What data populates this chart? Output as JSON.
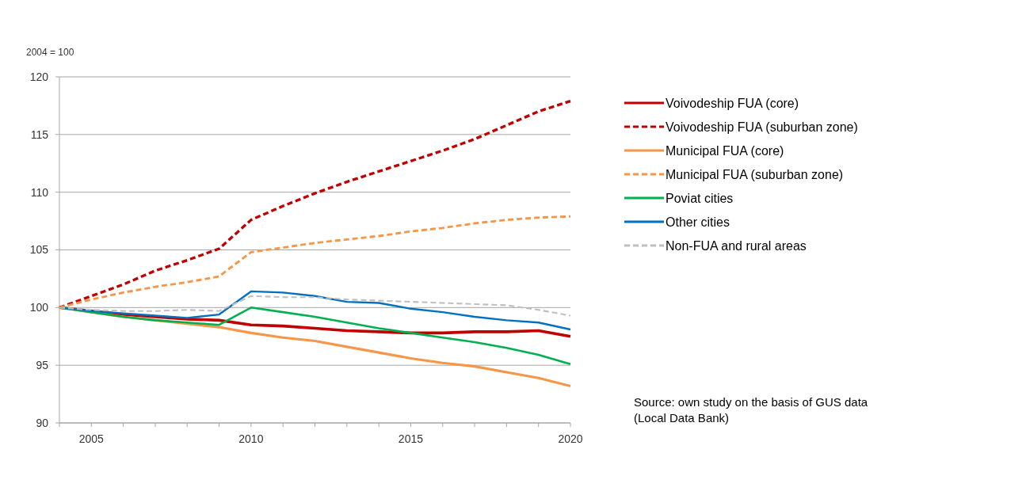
{
  "chart_data": {
    "type": "line",
    "ylabel": "2004 = 100",
    "x": [
      2004,
      2005,
      2006,
      2007,
      2008,
      2009,
      2010,
      2011,
      2012,
      2013,
      2014,
      2015,
      2016,
      2017,
      2018,
      2019,
      2020
    ],
    "series": [
      {
        "name": "Voivodeship FUA (core)",
        "color": "#c00000",
        "line_style": "solid",
        "values": [
          100,
          99.7,
          99.4,
          99.2,
          99.0,
          98.9,
          98.5,
          98.4,
          98.2,
          98.0,
          97.9,
          97.8,
          97.8,
          97.9,
          97.9,
          98.0,
          97.5
        ]
      },
      {
        "name": "Voivodeship FUA (suburban zone)",
        "color": "#c00000",
        "line_style": "dashed",
        "values": [
          100,
          101.0,
          102.0,
          103.2,
          104.1,
          105.1,
          107.6,
          108.8,
          109.9,
          110.9,
          111.8,
          112.7,
          113.6,
          114.6,
          115.8,
          117.0,
          117.9
        ]
      },
      {
        "name": "Municipal FUA (core)",
        "color": "#f79646",
        "line_style": "solid",
        "values": [
          100,
          99.6,
          99.2,
          98.9,
          98.6,
          98.3,
          97.8,
          97.4,
          97.1,
          96.6,
          96.1,
          95.6,
          95.2,
          94.9,
          94.4,
          93.9,
          93.2
        ]
      },
      {
        "name": "Municipal FUA (suburban zone)",
        "color": "#f79646",
        "line_style": "dashed",
        "values": [
          100,
          100.7,
          101.3,
          101.8,
          102.2,
          102.7,
          104.8,
          105.2,
          105.6,
          105.9,
          106.2,
          106.6,
          106.9,
          107.3,
          107.6,
          107.8,
          107.9
        ]
      },
      {
        "name": "Poviat cities",
        "color": "#00b050",
        "line_style": "solid",
        "values": [
          100,
          99.6,
          99.2,
          98.9,
          98.7,
          98.5,
          100.0,
          99.6,
          99.2,
          98.7,
          98.2,
          97.8,
          97.4,
          97.0,
          96.5,
          95.9,
          95.1
        ]
      },
      {
        "name": "Other cities",
        "color": "#0070c0",
        "line_style": "solid",
        "values": [
          100,
          99.7,
          99.5,
          99.3,
          99.1,
          99.4,
          101.4,
          101.3,
          101.0,
          100.5,
          100.4,
          99.9,
          99.6,
          99.2,
          98.9,
          98.7,
          98.1
        ]
      },
      {
        "name": "Non-FUA and rural areas",
        "color": "#bfbfbf",
        "line_style": "dashed",
        "values": [
          100,
          99.8,
          99.7,
          99.7,
          99.8,
          99.7,
          101.0,
          100.9,
          100.9,
          100.7,
          100.6,
          100.5,
          100.4,
          100.3,
          100.2,
          99.8,
          99.3
        ]
      }
    ],
    "xlim": [
      2004,
      2020
    ],
    "xticks": [
      {
        "value": 2004,
        "label": null
      },
      2005,
      {
        "value": 2006,
        "label": null
      },
      {
        "value": 2007,
        "label": null
      },
      {
        "value": 2008,
        "label": null
      },
      {
        "value": 2009,
        "label": null
      },
      2010,
      {
        "value": 2011,
        "label": null
      },
      {
        "value": 2012,
        "label": null
      },
      {
        "value": 2013,
        "label": null
      },
      {
        "value": 2014,
        "label": null
      },
      2015,
      {
        "value": 2016,
        "label": null
      },
      {
        "value": 2017,
        "label": null
      },
      {
        "value": 2018,
        "label": null
      },
      {
        "value": 2019,
        "label": null
      },
      2020
    ],
    "ylim": [
      90,
      120
    ],
    "yticks": [
      90,
      95,
      100,
      105,
      110,
      115,
      120
    ],
    "grid": "y",
    "legend": "right",
    "marker": "none",
    "annotations": [
      "Source: own study on the basis of GUS data (Local Data Bank)"
    ]
  }
}
